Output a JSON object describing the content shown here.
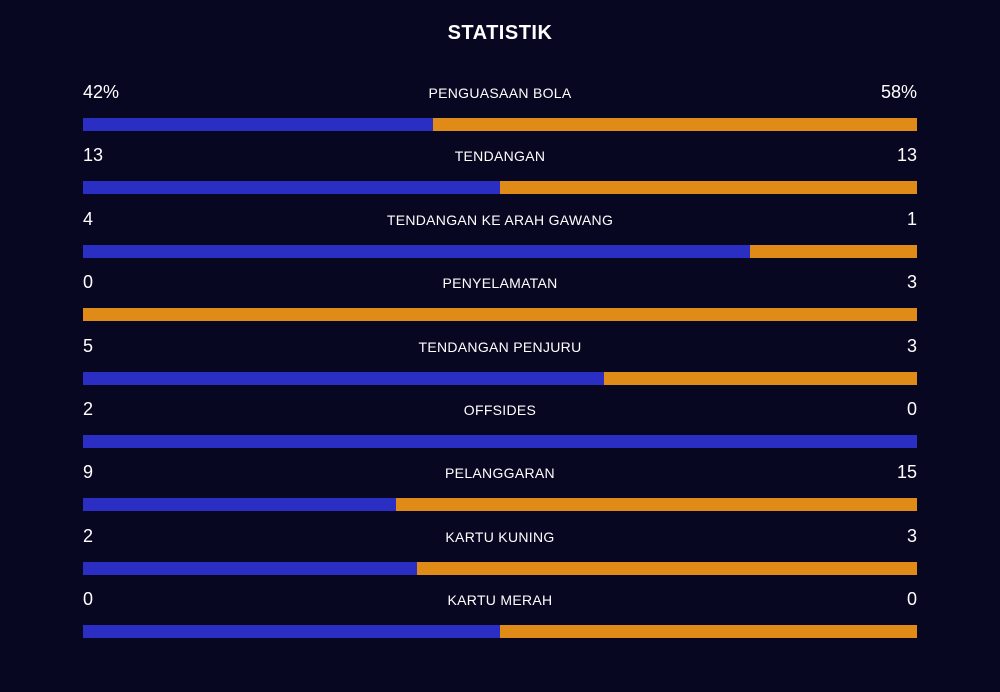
{
  "title": "STATISTIK",
  "colors": {
    "background": "#070721",
    "home": "#2a2ec2",
    "away": "#e08a18",
    "text": "#ffffff"
  },
  "stats": [
    {
      "label": "PENGUASAAN BOLA",
      "home": "42%",
      "away": "58%",
      "home_share": 0.42
    },
    {
      "label": "TENDANGAN",
      "home": "13",
      "away": "13",
      "home_share": 0.5
    },
    {
      "label": "TENDANGAN KE ARAH GAWANG",
      "home": "4",
      "away": "1",
      "home_share": 0.8
    },
    {
      "label": "PENYELAMATAN",
      "home": "0",
      "away": "3",
      "home_share": 0.0
    },
    {
      "label": "TENDANGAN PENJURU",
      "home": "5",
      "away": "3",
      "home_share": 0.625
    },
    {
      "label": "OFFSIDES",
      "home": "2",
      "away": "0",
      "home_share": 1.0
    },
    {
      "label": "PELANGGARAN",
      "home": "9",
      "away": "15",
      "home_share": 0.375
    },
    {
      "label": "KARTU KUNING",
      "home": "2",
      "away": "3",
      "home_share": 0.4
    },
    {
      "label": "KARTU MERAH",
      "home": "0",
      "away": "0",
      "home_share": 0.5
    }
  ]
}
